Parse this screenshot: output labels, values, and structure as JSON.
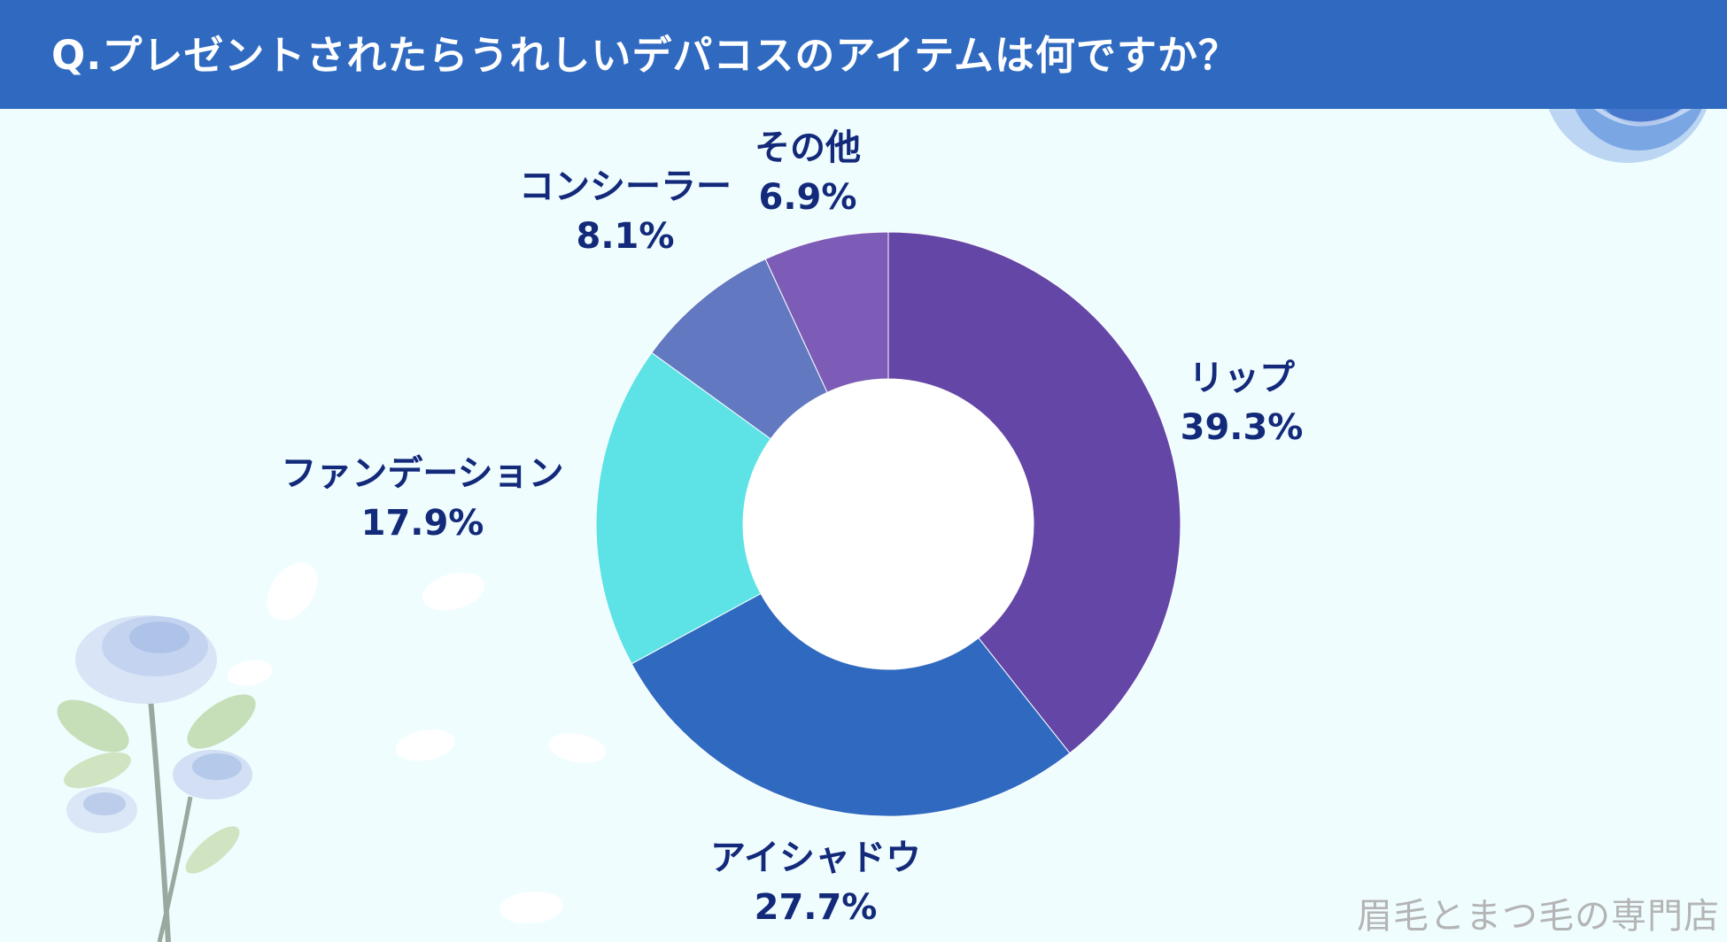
{
  "header": {
    "title": "Q.プレゼントされたらうれしいデパコスのアイテムは何ですか？"
  },
  "watermark": "眉毛とまつ毛の専門店",
  "colors": {
    "header_bg": "#2f6ac0",
    "background": "#effdff",
    "label_text": "#13297a"
  },
  "chart_data": {
    "type": "pie",
    "donut": true,
    "title": "Q.プレゼントされたらうれしいデパコスのアイテムは何ですか？",
    "slices": [
      {
        "label": "リップ",
        "value": 39.3,
        "display": "39.3%",
        "color": "#6446a6"
      },
      {
        "label": "アイシャドウ",
        "value": 27.7,
        "display": "27.7%",
        "color": "#2f6ac0"
      },
      {
        "label": "ファンデーション",
        "value": 17.9,
        "display": "17.9%",
        "color": "#5de3e6"
      },
      {
        "label": "コンシーラー",
        "value": 8.1,
        "display": "8.1%",
        "color": "#6279c2"
      },
      {
        "label": "その他",
        "value": 6.9,
        "display": "6.9%",
        "color": "#7c5cb6"
      }
    ],
    "start": "12 o'clock",
    "direction": "clockwise",
    "legend": "none"
  }
}
